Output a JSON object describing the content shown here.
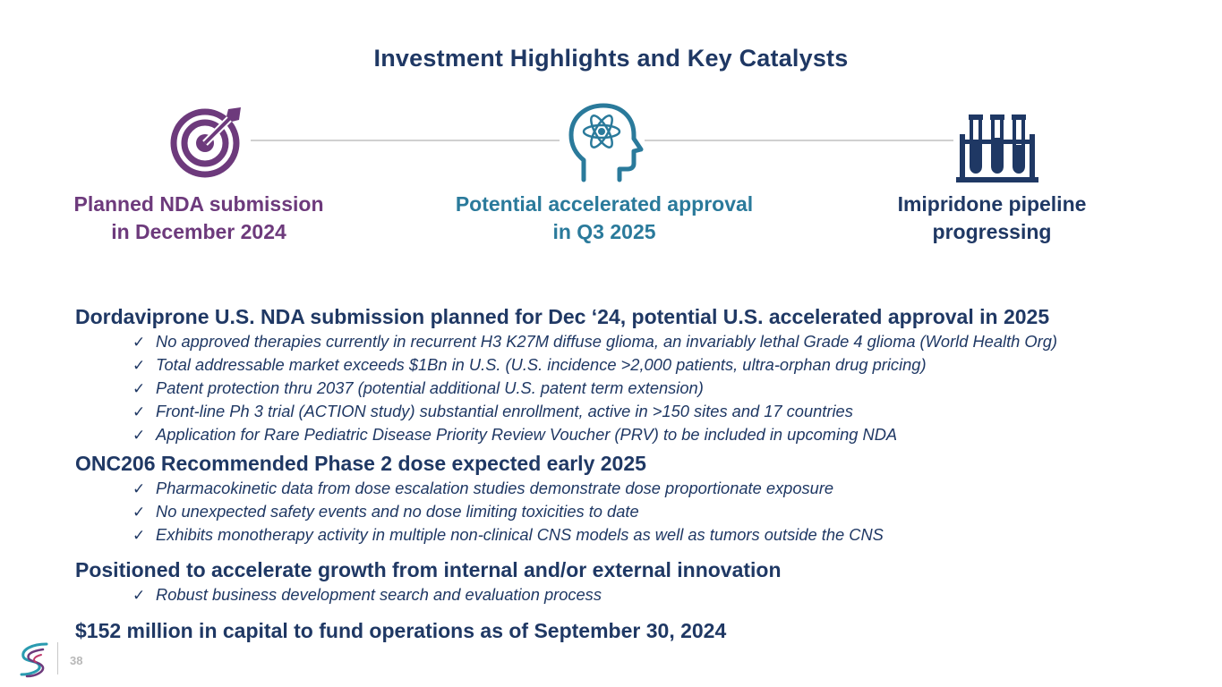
{
  "slide": {
    "title": "Investment Highlights and Key Catalysts",
    "page_number": "38"
  },
  "catalysts": [
    {
      "icon": "target-icon",
      "line1": "Planned NDA submission",
      "line2": "in December 2024",
      "color": "#6d3a7c"
    },
    {
      "icon": "brain-atom-icon",
      "line1": "Potential accelerated approval",
      "line2": "in Q3 2025",
      "color": "#2a7a9b"
    },
    {
      "icon": "test-tubes-icon",
      "line1": "Imipridone pipeline",
      "line2": "progressing",
      "color": "#1f3864"
    }
  ],
  "sections": [
    {
      "heading": "Dordaviprone U.S. NDA submission planned for Dec ‘24, potential U.S. accelerated approval in 2025",
      "bullets": [
        "No approved therapies currently in recurrent H3 K27M diffuse glioma, an invariably lethal Grade 4 glioma (World Health Org)",
        "Total addressable market exceeds $1Bn in U.S. (U.S. incidence >2,000 patients, ultra-orphan drug pricing)",
        "Patent protection thru 2037 (potential additional U.S. patent term extension)",
        "Front-line Ph 3 trial (ACTION study) substantial enrollment, active in >150 sites and 17 countries",
        "Application for Rare Pediatric Disease Priority Review Voucher (PRV) to be included in upcoming NDA"
      ]
    },
    {
      "heading": "ONC206 Recommended Phase 2 dose expected early 2025",
      "bullets": [
        "Pharmacokinetic data from dose escalation studies demonstrate dose proportionate exposure",
        "No unexpected safety events and no dose limiting toxicities to date",
        "Exhibits monotherapy activity in multiple non-clinical CNS models as well as tumors outside the CNS"
      ]
    },
    {
      "heading": "Positioned to accelerate growth from internal and/or external innovation",
      "bullets": [
        "Robust business development search and evaluation process"
      ]
    },
    {
      "heading": "$152 million in capital to fund operations as of September 30, 2024",
      "bullets": []
    }
  ],
  "check_mark": "✓",
  "colors": {
    "title": "#1f3864",
    "purple": "#6d3a7c",
    "teal": "#2a7a9b",
    "navy": "#1f3864",
    "connector": "#d0d0d0"
  }
}
